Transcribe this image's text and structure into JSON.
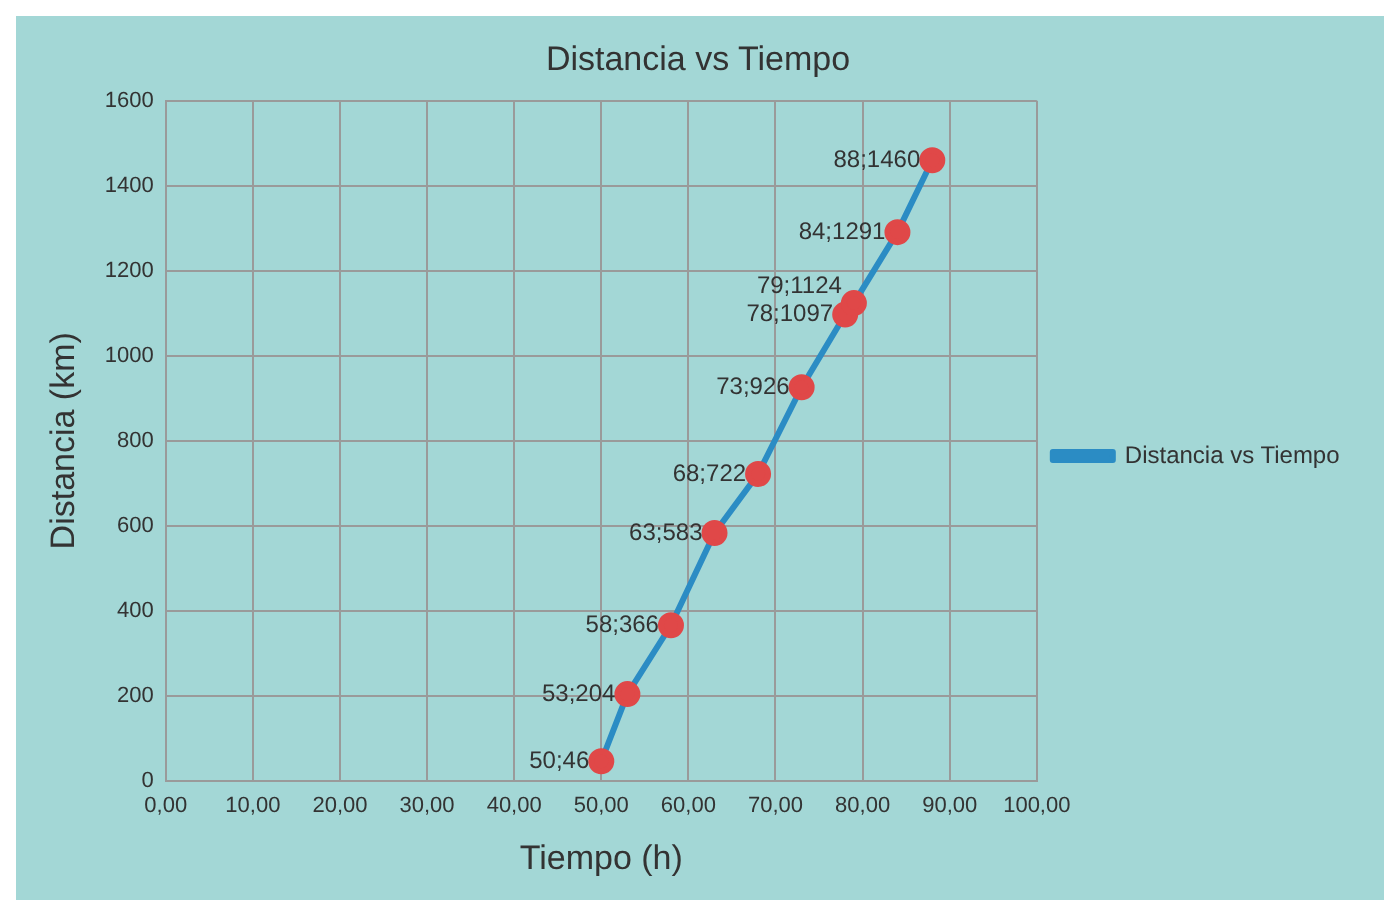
{
  "chart_data": {
    "type": "line",
    "title": "Distancia vs Tiempo",
    "xlabel": "Tiempo (h)",
    "ylabel": "Distancia (km)",
    "xlim": [
      0,
      100
    ],
    "xticks": [
      {
        "value": 0,
        "label": "0,00"
      },
      {
        "value": 10,
        "label": "10,00"
      },
      {
        "value": 20,
        "label": "20,00"
      },
      {
        "value": 30,
        "label": "30,00"
      },
      {
        "value": 40,
        "label": "40,00"
      },
      {
        "value": 50,
        "label": "50,00"
      },
      {
        "value": 60,
        "label": "60,00"
      },
      {
        "value": 70,
        "label": "70,00"
      },
      {
        "value": 80,
        "label": "80,00"
      },
      {
        "value": 90,
        "label": "90,00"
      },
      {
        "value": 100,
        "label": "100,00"
      }
    ],
    "ylim": [
      0,
      1600
    ],
    "yticks": [
      0,
      200,
      400,
      600,
      800,
      1000,
      1200,
      1400,
      1600
    ],
    "grid": true,
    "legend": "right",
    "marker": "circle",
    "line_style": "solid",
    "series": [
      {
        "name": "Distancia vs Tiempo",
        "color": "#2b8cc4",
        "colors": [
          "#e04848",
          "#e04848",
          "#e04848",
          "#e04848",
          "#e04848",
          "#e04848",
          "#e04848",
          "#e04848",
          "#e04848",
          "#e04848"
        ],
        "x": [
          50,
          53,
          58,
          63,
          68,
          73,
          78,
          79,
          84,
          88
        ],
        "values": [
          46,
          204,
          366,
          583,
          722,
          926,
          1097,
          1124,
          1291,
          1460
        ],
        "value_labels": [
          "50;46",
          "53;204",
          "58;366",
          "63;583",
          "68;722",
          "73;926",
          "78;1097",
          "79;1124",
          "84;1291",
          "88;1460"
        ]
      }
    ]
  }
}
